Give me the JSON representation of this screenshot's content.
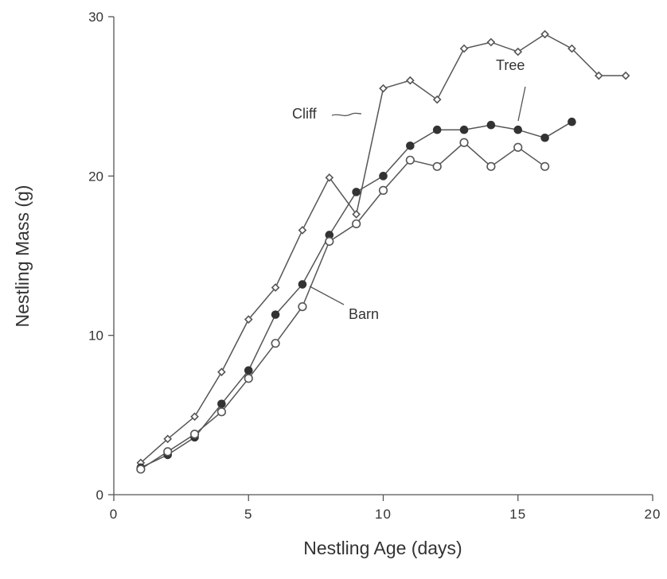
{
  "chart_data": {
    "type": "line",
    "title": "",
    "xlabel": "Nestling Age (days)",
    "ylabel": "Nestling Mass (g)",
    "xlim": [
      0,
      20
    ],
    "ylim": [
      0,
      30
    ],
    "x_ticks": [
      0,
      5,
      10,
      15,
      20
    ],
    "x_tick_labels": [
      "0",
      "5",
      "10",
      "15",
      "20"
    ],
    "y_ticks": [
      0,
      10,
      20,
      30
    ],
    "y_tick_labels": [
      "0",
      "10",
      "20",
      "30"
    ],
    "grid": false,
    "legend": "none",
    "series": [
      {
        "name": "Cliff",
        "marker": "open-diamond",
        "color": "#555555",
        "points": [
          [
            1,
            2.0
          ],
          [
            2,
            3.5
          ],
          [
            3,
            4.9
          ],
          [
            4,
            7.7
          ],
          [
            5,
            11.0
          ],
          [
            6,
            13.0
          ],
          [
            7,
            16.6
          ],
          [
            8,
            19.9
          ],
          [
            9,
            17.6
          ],
          [
            10,
            25.5
          ],
          [
            11,
            26.0
          ],
          [
            12,
            24.8
          ],
          [
            13,
            28.0
          ],
          [
            14,
            28.4
          ],
          [
            15,
            27.8
          ],
          [
            16,
            28.9
          ],
          [
            17,
            28.0
          ],
          [
            18,
            26.3
          ],
          [
            19,
            26.3
          ]
        ]
      },
      {
        "name": "Tree",
        "marker": "filled-circle",
        "color": "#333333",
        "points": [
          [
            1,
            1.7
          ],
          [
            2,
            2.5
          ],
          [
            3,
            3.6
          ],
          [
            4,
            5.7
          ],
          [
            5,
            7.8
          ],
          [
            6,
            11.3
          ],
          [
            7,
            13.2
          ],
          [
            8,
            16.3
          ],
          [
            9,
            19.0
          ],
          [
            10,
            20.0
          ],
          [
            11,
            21.9
          ],
          [
            12,
            22.9
          ],
          [
            13,
            22.9
          ],
          [
            14,
            23.2
          ],
          [
            15,
            22.9
          ],
          [
            16,
            22.4
          ],
          [
            17,
            23.4
          ]
        ]
      },
      {
        "name": "Barn",
        "marker": "open-circle",
        "color": "#555555",
        "points": [
          [
            1,
            1.6
          ],
          [
            2,
            2.7
          ],
          [
            3,
            3.8
          ],
          [
            4,
            5.2
          ],
          [
            5,
            7.3
          ],
          [
            6,
            9.5
          ],
          [
            7,
            11.8
          ],
          [
            8,
            15.9
          ],
          [
            9,
            17.0
          ],
          [
            10,
            19.1
          ],
          [
            11,
            21.0
          ],
          [
            12,
            20.6
          ],
          [
            13,
            22.1
          ],
          [
            14,
            20.6
          ],
          [
            15,
            21.8
          ],
          [
            16,
            20.6
          ]
        ]
      }
    ]
  }
}
